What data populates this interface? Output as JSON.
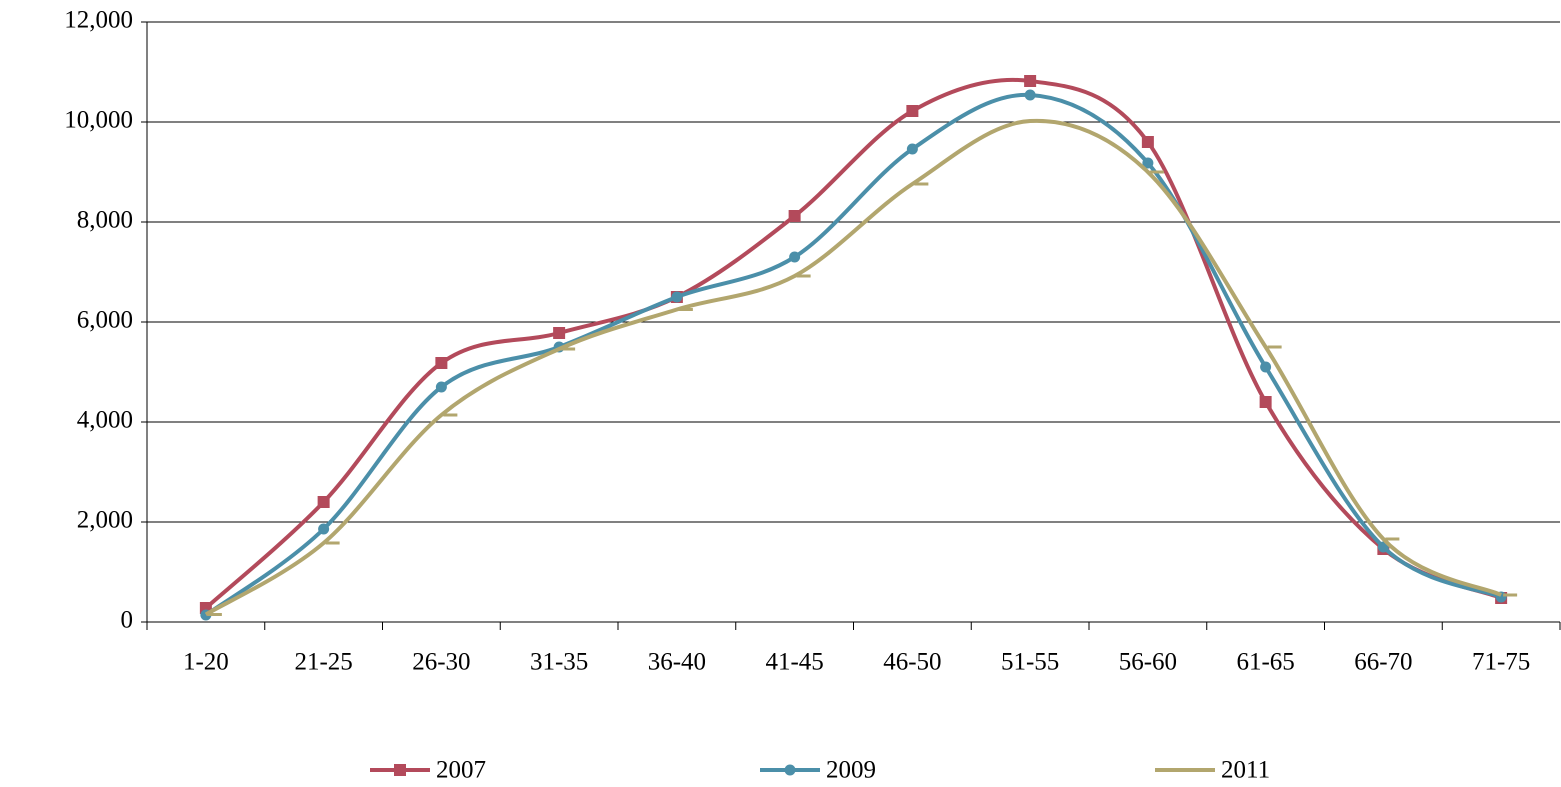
{
  "chart_data": {
    "type": "line",
    "categories": [
      "1-20",
      "21-25",
      "26-30",
      "31-35",
      "36-40",
      "41-45",
      "46-50",
      "51-55",
      "56-60",
      "61-65",
      "66-70",
      "71-75"
    ],
    "series": [
      {
        "name": "2007",
        "color": "#b34a5b",
        "marker": "square",
        "values": [
          280,
          2400,
          5180,
          5780,
          6500,
          8120,
          10220,
          10820,
          9600,
          4400,
          1460,
          480
        ]
      },
      {
        "name": "2009",
        "color": "#4b8fa9",
        "marker": "circle",
        "values": [
          140,
          1860,
          4700,
          5500,
          6500,
          7300,
          9460,
          10540,
          9180,
          5100,
          1500,
          500
        ]
      },
      {
        "name": "2011",
        "color": "#b2a66e",
        "marker": "dash",
        "values": [
          150,
          1580,
          4140,
          5460,
          6250,
          6920,
          8760,
          10020,
          9000,
          5500,
          1660,
          540
        ]
      }
    ],
    "ylim": [
      0,
      12000
    ],
    "yticks": [
      0,
      {
        "value": 2000,
        "label": "2,000"
      },
      {
        "value": 4000,
        "label": "4,000"
      },
      {
        "value": 6000,
        "label": "6,000"
      },
      {
        "value": 8000,
        "label": "8,000"
      },
      {
        "value": 10000,
        "label": "10,000"
      },
      {
        "value": 12000,
        "label": "12,000"
      }
    ],
    "grid": true,
    "legend": "bottom"
  }
}
